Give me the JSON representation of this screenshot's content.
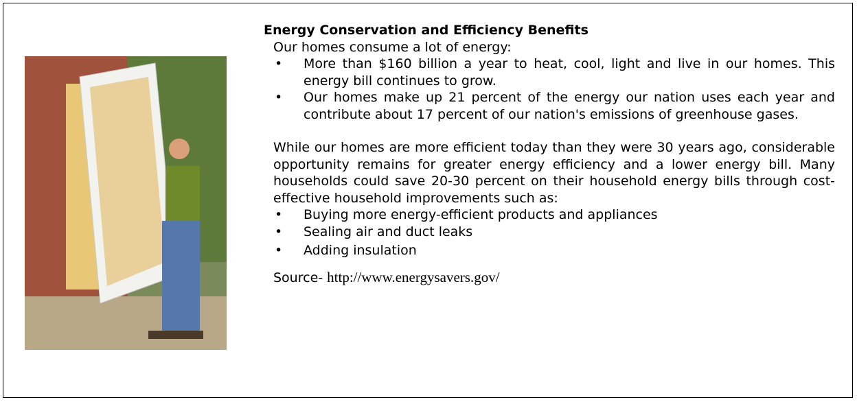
{
  "title": "Energy Conservation and Efficiency Benefits",
  "intro": "Our homes consume a lot of energy:",
  "bullets_1": [
    "More than $160 billion a year to heat, cool, light and live in our homes. This energy bill continues to grow.",
    "Our homes make up 21 percent of the energy our nation uses each year and contribute about 17 percent of our nation's emissions of greenhouse gases."
  ],
  "paragraph": "While our homes are more efficient today than they were 30 years ago, considerable opportunity remains for greater energy efficiency and a lower energy bill. Many households could save 20-30 percent on their household energy bills through cost-effective household improvements such as:",
  "bullets_2": [
    "Buying more energy-efficient products and appliances",
    "Sealing air and duct leaks",
    "Adding insulation"
  ],
  "source": {
    "label": "Source-",
    "url": "http://www.energysavers.gov/"
  }
}
